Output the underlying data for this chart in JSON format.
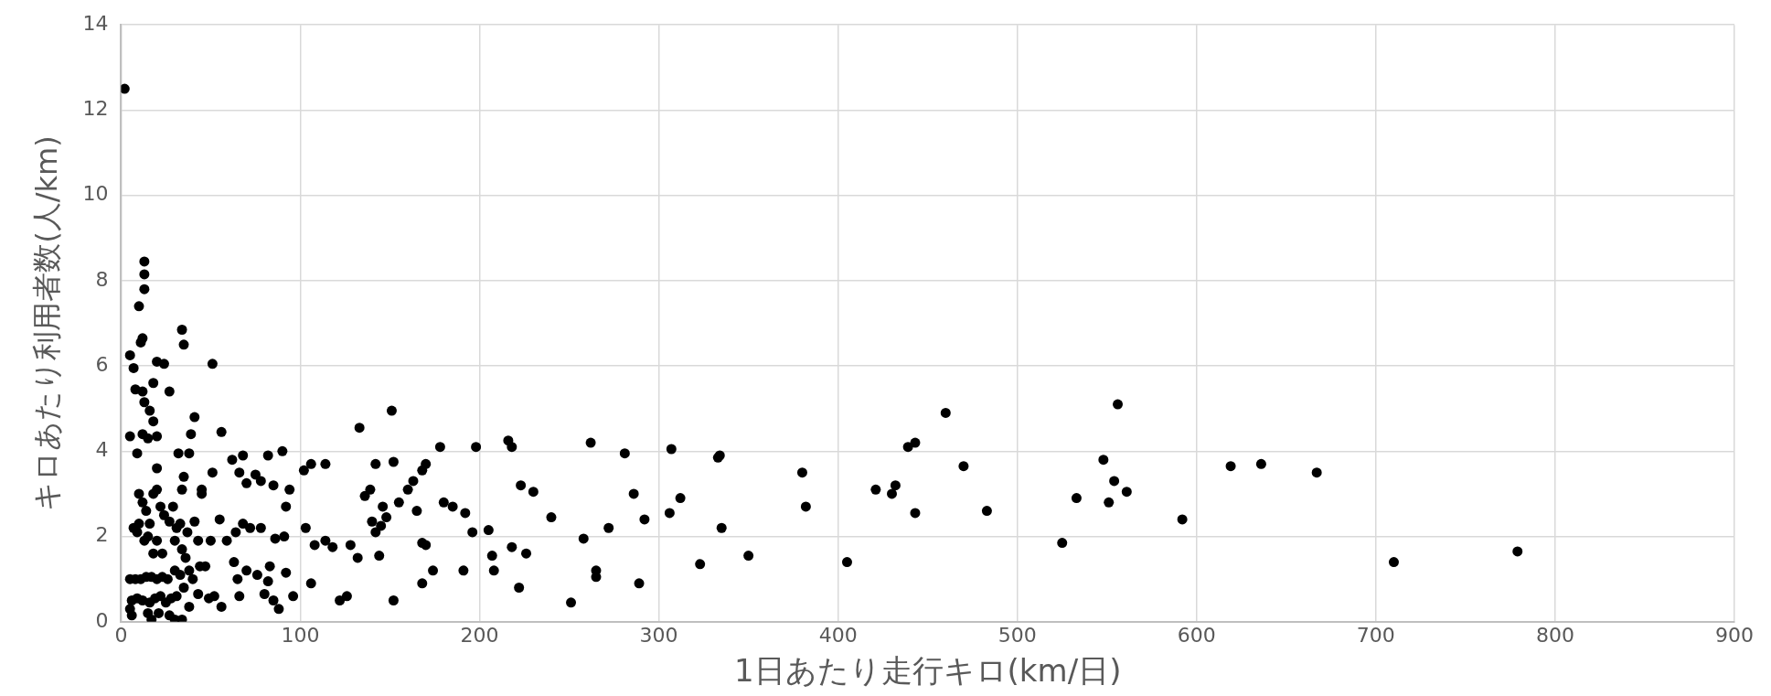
{
  "chart_data": {
    "type": "scatter",
    "xlabel": "1日あたり走行キロ(km/日)",
    "ylabel": "キロあたり利用者数(人/km)",
    "xlim": [
      0,
      900
    ],
    "xticks": [
      0,
      100,
      200,
      300,
      400,
      500,
      600,
      700,
      800,
      900
    ],
    "ylim": [
      0,
      14
    ],
    "yticks": [
      0,
      2,
      4,
      6,
      8,
      10,
      12,
      14
    ],
    "grid": true,
    "marker": "circle",
    "legend": false,
    "series": [
      {
        "color": "#000000",
        "x": [
          2,
          13,
          13,
          13,
          10,
          12,
          11,
          5,
          7,
          8,
          12,
          13,
          16,
          18,
          20,
          24,
          27,
          5,
          12,
          15,
          18,
          20,
          9,
          20,
          7,
          9,
          10,
          12,
          14,
          16,
          18,
          20,
          22,
          24,
          27,
          29,
          10,
          13,
          15,
          18,
          20,
          23,
          5,
          8,
          11,
          14,
          17,
          20,
          23,
          26,
          6,
          9,
          12,
          16,
          19,
          22,
          5,
          6,
          15,
          17,
          21,
          25,
          28,
          31,
          30,
          34,
          27,
          34,
          35,
          51,
          41,
          39,
          56,
          38,
          35,
          34,
          32,
          33,
          37,
          41,
          45,
          45,
          31,
          30,
          34,
          36,
          38,
          40,
          44,
          47,
          43,
          33,
          35,
          30,
          38,
          43,
          49,
          56,
          52,
          50,
          51,
          55,
          59,
          62,
          66,
          68,
          70,
          64,
          68,
          72,
          63,
          65,
          70,
          66,
          75,
          78,
          82,
          85,
          90,
          78,
          83,
          86,
          92,
          94,
          80,
          85,
          88,
          92,
          96,
          91,
          82,
          76,
          102,
          106,
          114,
          103,
          108,
          114,
          118,
          106,
          122,
          126,
          128,
          132,
          133,
          136,
          139,
          140,
          142,
          145,
          146,
          148,
          144,
          142,
          152,
          151,
          155,
          152,
          160,
          163,
          165,
          168,
          170,
          168,
          170,
          168,
          174,
          178,
          180,
          185,
          192,
          196,
          198,
          191,
          205,
          207,
          208,
          216,
          218,
          218,
          223,
          222,
          226,
          230,
          240,
          251,
          258,
          262,
          265,
          265,
          272,
          281,
          286,
          289,
          292,
          306,
          307,
          312,
          323,
          333,
          334,
          335,
          350,
          380,
          382,
          405,
          421,
          430,
          432,
          439,
          443,
          443,
          460,
          470,
          483,
          525,
          533,
          548,
          551,
          554,
          556,
          561,
          592,
          619,
          636,
          667,
          710,
          779
        ],
        "values": [
          12.5,
          8.45,
          8.15,
          7.8,
          7.4,
          6.65,
          6.55,
          6.25,
          5.95,
          5.45,
          5.4,
          5.15,
          4.95,
          5.6,
          6.1,
          6.05,
          5.4,
          4.35,
          4.4,
          4.3,
          4.7,
          4.35,
          3.95,
          3.6,
          2.2,
          2.1,
          3.0,
          2.8,
          2.6,
          2.3,
          3.0,
          3.1,
          2.7,
          2.5,
          2.35,
          2.7,
          2.3,
          1.9,
          2.0,
          1.6,
          1.9,
          1.6,
          1.0,
          1.0,
          1.0,
          1.05,
          1.05,
          1.0,
          1.05,
          1.0,
          0.5,
          0.55,
          0.5,
          0.45,
          0.55,
          0.6,
          0.3,
          0.15,
          0.2,
          0.05,
          0.2,
          0.45,
          0.55,
          0.6,
          0.05,
          0.05,
          0.15,
          6.85,
          6.5,
          6.05,
          4.8,
          4.4,
          4.45,
          3.95,
          3.4,
          3.1,
          3.95,
          2.3,
          2.1,
          2.35,
          3.1,
          3.0,
          2.2,
          1.9,
          1.7,
          1.5,
          1.2,
          1.0,
          1.3,
          1.3,
          1.9,
          1.1,
          0.8,
          1.2,
          0.35,
          0.65,
          0.55,
          0.35,
          0.6,
          1.9,
          3.5,
          2.4,
          1.9,
          3.8,
          3.5,
          3.9,
          3.25,
          2.1,
          2.3,
          2.2,
          1.4,
          1.0,
          1.2,
          0.6,
          3.45,
          3.3,
          3.9,
          3.2,
          4.0,
          2.2,
          1.3,
          1.95,
          2.7,
          3.1,
          0.65,
          0.5,
          0.3,
          1.15,
          0.6,
          2.0,
          0.95,
          1.1,
          3.55,
          3.7,
          3.7,
          2.2,
          1.8,
          1.9,
          1.75,
          0.9,
          0.5,
          0.6,
          1.8,
          1.5,
          4.55,
          2.95,
          3.1,
          2.35,
          3.7,
          2.25,
          2.7,
          2.45,
          1.55,
          2.1,
          3.75,
          4.95,
          2.8,
          0.5,
          3.1,
          3.3,
          2.6,
          3.55,
          3.7,
          1.85,
          1.8,
          0.9,
          1.2,
          4.1,
          2.8,
          2.7,
          2.55,
          2.1,
          4.1,
          1.2,
          2.15,
          1.55,
          1.2,
          4.25,
          4.1,
          1.75,
          3.2,
          0.8,
          1.6,
          3.05,
          2.45,
          0.45,
          1.95,
          4.2,
          1.2,
          1.05,
          2.2,
          3.95,
          3.0,
          0.9,
          2.4,
          2.55,
          4.05,
          2.9,
          1.35,
          3.85,
          3.9,
          2.2,
          1.55,
          3.5,
          2.7,
          1.4,
          3.1,
          3.0,
          3.2,
          4.1,
          4.2,
          2.55,
          4.9,
          3.65,
          2.6,
          1.85,
          2.9,
          3.8,
          2.8,
          3.3,
          5.1,
          3.05,
          2.4,
          3.65,
          3.7,
          3.5,
          1.4,
          1.65
        ]
      }
    ]
  }
}
